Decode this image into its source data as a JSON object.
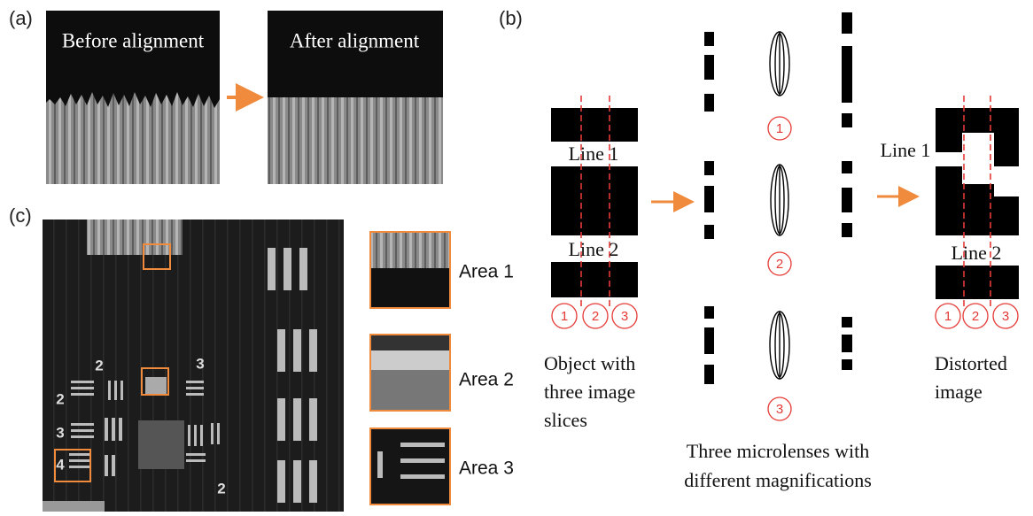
{
  "panel_a": {
    "label": "(a)",
    "before_title": "Before alignment",
    "after_title": "After alignment"
  },
  "panel_b": {
    "label": "(b)",
    "line1": "Line 1",
    "line2": "Line 2",
    "object_slice_numbers": [
      "1",
      "2",
      "3"
    ],
    "lens_numbers": [
      "1",
      "2",
      "3"
    ],
    "distorted_slice_numbers": [
      "1",
      "2",
      "3"
    ],
    "distorted_line1": "Line 1",
    "distorted_line2": "Line 2",
    "object_caption": [
      "Object with",
      "three image",
      "slices"
    ],
    "lens_caption": [
      "Three microlenses with",
      "different magnifications"
    ],
    "distorted_caption": [
      "Distorted",
      "image"
    ]
  },
  "panel_c": {
    "label": "(c)",
    "target_labels": [
      "2",
      "3",
      "2",
      "3",
      "4",
      "2"
    ],
    "areas": [
      "Area 1",
      "Area 2",
      "Area 3"
    ]
  }
}
